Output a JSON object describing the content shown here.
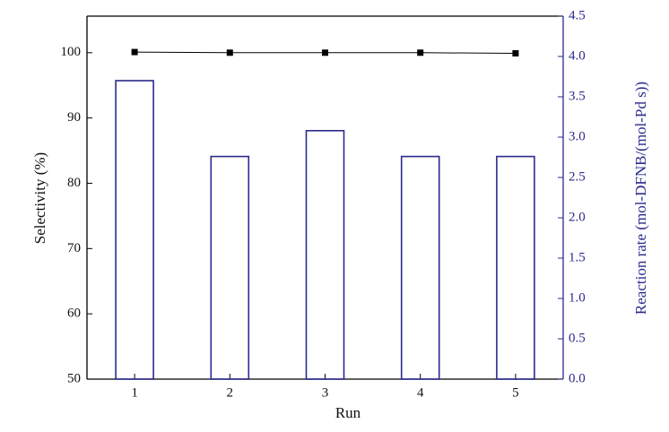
{
  "chart_data": {
    "type": "bar_line",
    "x_label": "Run",
    "y_label": "Selectivity (%)",
    "y2_label": "Reaction rate (mol-DFNB/(mol-Pd s))",
    "categories": [
      "1",
      "2",
      "3",
      "4",
      "5"
    ],
    "ylim": [
      50,
      105.6
    ],
    "yticks": [
      50,
      60,
      70,
      80,
      90,
      100
    ],
    "y2lim": [
      0,
      4.5
    ],
    "y2ticks": [
      {
        "value": 0,
        "label": "0.0"
      },
      0.5,
      {
        "value": 1,
        "label": "1.0"
      },
      1.5,
      {
        "value": 2,
        "label": "2.0"
      },
      2.5,
      {
        "value": 3,
        "label": "3.0"
      },
      3.5,
      {
        "value": 4,
        "label": "4.0"
      },
      4.5
    ],
    "series": [
      {
        "type": "bar",
        "axis": "y2",
        "color": "#2a2a8c",
        "values": [
          3.7,
          2.76,
          3.08,
          2.76,
          2.76
        ]
      },
      {
        "type": "line",
        "axis": "y",
        "color": "#000000",
        "values": [
          100.1,
          100,
          100,
          100,
          99.9
        ]
      }
    ]
  }
}
